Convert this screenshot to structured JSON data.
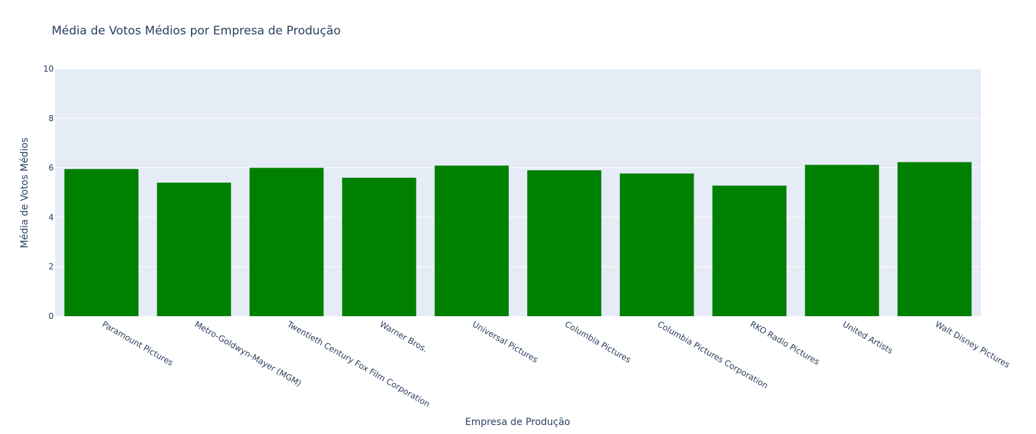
{
  "chart_data": {
    "type": "bar",
    "title": "Média de Votos Médios por Empresa de Produção",
    "xlabel": "Empresa de Produção",
    "ylabel": "Média de Votos Médios",
    "categories": [
      "Paramount Pictures",
      "Metro-Goldwyn-Mayer (MGM)",
      "Twentieth Century Fox Film Corporation",
      "Warner Bros.",
      "Universal Pictures",
      "Columbia Pictures",
      "Columbia Pictures Corporation",
      "RKO Radio Pictures",
      "United Artists",
      "Walt Disney Pictures"
    ],
    "series": [
      {
        "values": [
          5.95,
          5.4,
          6.0,
          5.6,
          6.09,
          5.9,
          5.77,
          5.28,
          6.12,
          6.23
        ]
      }
    ],
    "ylim": [
      0,
      10
    ],
    "yticks": [
      0,
      2,
      4,
      6,
      8,
      10
    ],
    "grid": true,
    "colors": {
      "bar": "#008000",
      "plot_background": "#e5ecf6",
      "gridline": "#ffffff",
      "text": "#2a3f5f"
    }
  }
}
